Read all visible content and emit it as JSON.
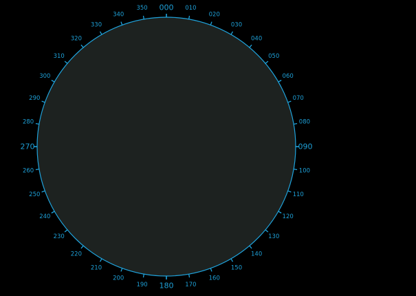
{
  "display": {
    "colors": {
      "background": "#000000",
      "scope_fill": "#1d2220",
      "ring": "#1fa3dc",
      "text": "#1e9fd6"
    }
  },
  "compass": {
    "bearings": [
      {
        "deg": 0,
        "label": "000",
        "major": true
      },
      {
        "deg": 10,
        "label": "010"
      },
      {
        "deg": 20,
        "label": "020"
      },
      {
        "deg": 30,
        "label": "030"
      },
      {
        "deg": 40,
        "label": "040"
      },
      {
        "deg": 50,
        "label": "050"
      },
      {
        "deg": 60,
        "label": "060"
      },
      {
        "deg": 70,
        "label": "070"
      },
      {
        "deg": 80,
        "label": "080"
      },
      {
        "deg": 90,
        "label": "090",
        "major": true
      },
      {
        "deg": 100,
        "label": "100"
      },
      {
        "deg": 110,
        "label": "110"
      },
      {
        "deg": 120,
        "label": "120"
      },
      {
        "deg": 130,
        "label": "130"
      },
      {
        "deg": 140,
        "label": "140"
      },
      {
        "deg": 150,
        "label": "150"
      },
      {
        "deg": 160,
        "label": "160"
      },
      {
        "deg": 170,
        "label": "170"
      },
      {
        "deg": 180,
        "label": "180",
        "major": true
      },
      {
        "deg": 190,
        "label": "190"
      },
      {
        "deg": 200,
        "label": "200"
      },
      {
        "deg": 210,
        "label": "210"
      },
      {
        "deg": 220,
        "label": "220"
      },
      {
        "deg": 230,
        "label": "230"
      },
      {
        "deg": 240,
        "label": "240"
      },
      {
        "deg": 250,
        "label": "250"
      },
      {
        "deg": 260,
        "label": "260"
      },
      {
        "deg": 270,
        "label": "270",
        "major": true
      },
      {
        "deg": 280,
        "label": "280"
      },
      {
        "deg": 290,
        "label": "290"
      },
      {
        "deg": 300,
        "label": "300"
      },
      {
        "deg": 310,
        "label": "310"
      },
      {
        "deg": 320,
        "label": "320"
      },
      {
        "deg": 330,
        "label": "330"
      },
      {
        "deg": 340,
        "label": "340"
      },
      {
        "deg": 350,
        "label": "350"
      }
    ]
  }
}
